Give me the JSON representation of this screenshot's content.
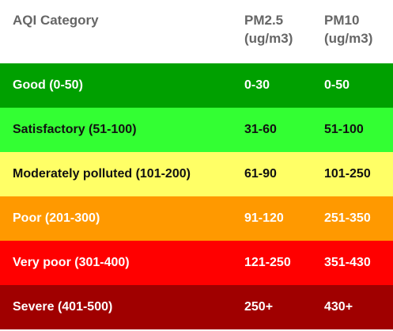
{
  "header": {
    "category": "AQI Category",
    "pm25_line1": "PM2.5",
    "pm25_line2": "(ug/m3)",
    "pm10_line1": "PM10",
    "pm10_line2": "(ug/m3)"
  },
  "rows": [
    {
      "category": "Good  (0-50)",
      "pm25": "0-30",
      "pm10": "0-50",
      "bg": "#00a000",
      "fg": "#ffffff"
    },
    {
      "category": "Satisfactory (51-100)",
      "pm25": "31-60",
      "pm10": "51-100",
      "bg": "#33ff33",
      "fg": "#111111"
    },
    {
      "category": "Moderately polluted (101-200)",
      "pm25": "61-90",
      "pm10": "101-250",
      "bg": "#ffff66",
      "fg": "#111111"
    },
    {
      "category": "Poor (201-300)",
      "pm25": "91-120",
      "pm10": "251-350",
      "bg": "#ff9900",
      "fg": "#ffffff"
    },
    {
      "category": "Very poor (301-400)",
      "pm25": "121-250",
      "pm10": "351-430",
      "bg": "#ff0000",
      "fg": "#ffffff"
    },
    {
      "category": "Severe (401-500)",
      "pm25": "250+",
      "pm10": "430+",
      "bg": "#a00000",
      "fg": "#ffffff"
    }
  ]
}
